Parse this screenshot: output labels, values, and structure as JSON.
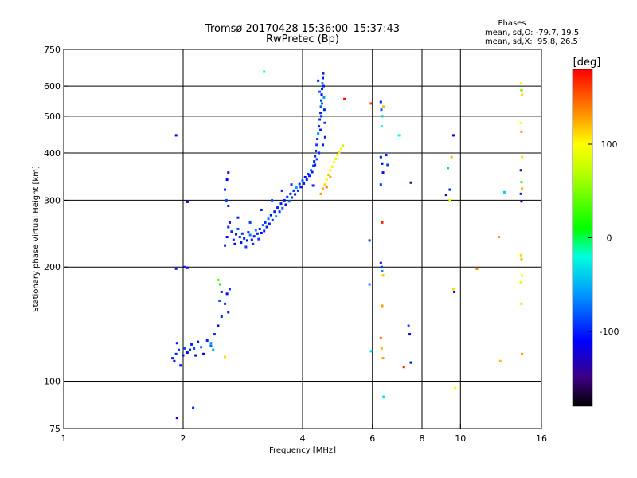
{
  "chart_data": {
    "type": "scatter",
    "title": "Tromsø 20170428 15:36:00–15:37:43",
    "subtitle": "RwPretec (Bp)",
    "xlabel": "Frequency [MHz]",
    "ylabel": "Stationary phase Virtual Height [km]",
    "xscale": "log2",
    "yscale": "log",
    "xlim": [
      1,
      16
    ],
    "ylim": [
      75,
      750
    ],
    "x_ticks": [
      {
        "value": 1,
        "label": "1"
      },
      {
        "value": 2,
        "label": "2"
      },
      {
        "value": 4,
        "label": "4"
      },
      {
        "value": 6,
        "label": "6"
      },
      {
        "value": 8,
        "label": "8"
      },
      {
        "value": 10,
        "label": "10"
      },
      {
        "value": 16,
        "label": "16"
      }
    ],
    "y_ticks": [
      {
        "value": 75,
        "label": "75"
      },
      {
        "value": 100,
        "label": "100"
      },
      {
        "value": 200,
        "label": "200"
      },
      {
        "value": 300,
        "label": "300"
      },
      {
        "value": 400,
        "label": "400"
      },
      {
        "value": 500,
        "label": "500"
      },
      {
        "value": 600,
        "label": "600"
      },
      {
        "value": 750,
        "label": "750"
      }
    ],
    "x_grid": [
      2,
      4,
      6,
      8,
      10
    ],
    "y_grid": [
      100,
      200,
      300,
      400,
      500,
      600
    ],
    "grid": true,
    "phase_info": {
      "heading": "Phases",
      "line_o": "mean, sd,O: -79.7, 19.5",
      "line_x": "mean, sd,X:  95.8, 26.5"
    },
    "colorbar": {
      "label": "[deg]",
      "range": [
        -180,
        180
      ],
      "ticks": [
        {
          "value": 100,
          "label": "100"
        },
        {
          "value": 0,
          "label": "0"
        },
        {
          "value": -100,
          "label": "-100"
        }
      ],
      "stops": [
        {
          "value": -180,
          "color": "#000000"
        },
        {
          "value": -150,
          "color": "#3d0080"
        },
        {
          "value": -110,
          "color": "#0000ff"
        },
        {
          "value": -60,
          "color": "#0099ff"
        },
        {
          "value": -20,
          "color": "#00ffdd"
        },
        {
          "value": 10,
          "color": "#00ff00"
        },
        {
          "value": 70,
          "color": "#bbff00"
        },
        {
          "value": 100,
          "color": "#ffff00"
        },
        {
          "value": 130,
          "color": "#ff9900"
        },
        {
          "value": 180,
          "color": "#ff0000"
        }
      ]
    },
    "points": [
      {
        "f": 1.88,
        "h": 115,
        "p": -100
      },
      {
        "f": 1.9,
        "h": 113,
        "p": -110
      },
      {
        "f": 1.92,
        "h": 118,
        "p": -95
      },
      {
        "f": 1.93,
        "h": 126,
        "p": -105
      },
      {
        "f": 1.95,
        "h": 121,
        "p": -90
      },
      {
        "f": 1.97,
        "h": 110,
        "p": -115
      },
      {
        "f": 2.0,
        "h": 117,
        "p": -100
      },
      {
        "f": 2.02,
        "h": 122,
        "p": -85
      },
      {
        "f": 2.05,
        "h": 119,
        "p": -110
      },
      {
        "f": 2.08,
        "h": 121,
        "p": -95
      },
      {
        "f": 2.1,
        "h": 125,
        "p": -100
      },
      {
        "f": 2.13,
        "h": 122,
        "p": -90
      },
      {
        "f": 2.15,
        "h": 117,
        "p": -120
      },
      {
        "f": 2.18,
        "h": 127,
        "p": -105
      },
      {
        "f": 2.22,
        "h": 123,
        "p": -70
      },
      {
        "f": 2.25,
        "h": 118,
        "p": -110
      },
      {
        "f": 2.3,
        "h": 128,
        "p": -100
      },
      {
        "f": 2.35,
        "h": 124,
        "p": -80
      },
      {
        "f": 2.4,
        "h": 133,
        "p": -95
      },
      {
        "f": 2.45,
        "h": 140,
        "p": -105
      },
      {
        "f": 2.5,
        "h": 148,
        "p": -100
      },
      {
        "f": 2.55,
        "h": 160,
        "p": -90
      },
      {
        "f": 2.58,
        "h": 170,
        "p": -110
      },
      {
        "f": 2.6,
        "h": 152,
        "p": -100
      },
      {
        "f": 2.62,
        "h": 175,
        "p": -95
      },
      {
        "f": 2.5,
        "h": 172,
        "p": -100
      },
      {
        "f": 2.47,
        "h": 163,
        "p": -80
      },
      {
        "f": 2.45,
        "h": 185,
        "p": 40
      },
      {
        "f": 2.48,
        "h": 180,
        "p": 10
      },
      {
        "f": 2.35,
        "h": 126,
        "p": -60
      },
      {
        "f": 2.38,
        "h": 121,
        "p": -50
      },
      {
        "f": 2.55,
        "h": 116,
        "p": 110
      },
      {
        "f": 1.92,
        "h": 198,
        "p": -100
      },
      {
        "f": 2.02,
        "h": 200,
        "p": -95
      },
      {
        "f": 2.05,
        "h": 199,
        "p": -110
      },
      {
        "f": 1.92,
        "h": 445,
        "p": -110
      },
      {
        "f": 2.05,
        "h": 297,
        "p": -105
      },
      {
        "f": 1.93,
        "h": 80,
        "p": -110
      },
      {
        "f": 2.12,
        "h": 85,
        "p": -100
      },
      {
        "f": 2.55,
        "h": 320,
        "p": -100
      },
      {
        "f": 2.58,
        "h": 340,
        "p": -110
      },
      {
        "f": 2.6,
        "h": 355,
        "p": -105
      },
      {
        "f": 2.57,
        "h": 300,
        "p": -90
      },
      {
        "f": 2.6,
        "h": 290,
        "p": -100
      },
      {
        "f": 2.55,
        "h": 228,
        "p": -100
      },
      {
        "f": 2.58,
        "h": 240,
        "p": -110
      },
      {
        "f": 2.6,
        "h": 255,
        "p": -95
      },
      {
        "f": 2.62,
        "h": 262,
        "p": -105
      },
      {
        "f": 2.65,
        "h": 248,
        "p": -100
      },
      {
        "f": 2.68,
        "h": 236,
        "p": -90
      },
      {
        "f": 2.7,
        "h": 230,
        "p": -110
      },
      {
        "f": 2.72,
        "h": 244,
        "p": -100
      },
      {
        "f": 2.75,
        "h": 252,
        "p": -85
      },
      {
        "f": 2.78,
        "h": 240,
        "p": -100
      },
      {
        "f": 2.8,
        "h": 232,
        "p": -105
      },
      {
        "f": 2.82,
        "h": 245,
        "p": -95
      },
      {
        "f": 2.85,
        "h": 238,
        "p": -100
      },
      {
        "f": 2.88,
        "h": 226,
        "p": -90
      },
      {
        "f": 2.9,
        "h": 235,
        "p": -110
      },
      {
        "f": 2.92,
        "h": 247,
        "p": -100
      },
      {
        "f": 2.95,
        "h": 243,
        "p": -70
      },
      {
        "f": 2.98,
        "h": 236,
        "p": -100
      },
      {
        "f": 3.0,
        "h": 230,
        "p": -95
      },
      {
        "f": 3.02,
        "h": 241,
        "p": -105
      },
      {
        "f": 3.05,
        "h": 250,
        "p": -60
      },
      {
        "f": 3.08,
        "h": 245,
        "p": -100
      },
      {
        "f": 3.1,
        "h": 237,
        "p": -90
      },
      {
        "f": 3.12,
        "h": 252,
        "p": -100
      },
      {
        "f": 3.15,
        "h": 246,
        "p": -110
      },
      {
        "f": 3.18,
        "h": 258,
        "p": -80
      },
      {
        "f": 3.2,
        "h": 249,
        "p": -100
      },
      {
        "f": 3.22,
        "h": 262,
        "p": -95
      },
      {
        "f": 3.25,
        "h": 255,
        "p": -100
      },
      {
        "f": 3.28,
        "h": 268,
        "p": -70
      },
      {
        "f": 3.3,
        "h": 260,
        "p": -100
      },
      {
        "f": 3.33,
        "h": 274,
        "p": -105
      },
      {
        "f": 3.36,
        "h": 266,
        "p": -90
      },
      {
        "f": 3.4,
        "h": 280,
        "p": -100
      },
      {
        "f": 3.43,
        "h": 272,
        "p": -60
      },
      {
        "f": 3.46,
        "h": 287,
        "p": -100
      },
      {
        "f": 3.5,
        "h": 280,
        "p": -95
      },
      {
        "f": 3.53,
        "h": 294,
        "p": -100
      },
      {
        "f": 3.56,
        "h": 286,
        "p": -80
      },
      {
        "f": 3.6,
        "h": 300,
        "p": -100
      },
      {
        "f": 3.63,
        "h": 292,
        "p": -110
      },
      {
        "f": 3.66,
        "h": 306,
        "p": -95
      },
      {
        "f": 3.7,
        "h": 298,
        "p": -70
      },
      {
        "f": 3.73,
        "h": 312,
        "p": -100
      },
      {
        "f": 3.76,
        "h": 305,
        "p": -90
      },
      {
        "f": 3.8,
        "h": 318,
        "p": -100
      },
      {
        "f": 3.83,
        "h": 311,
        "p": -105
      },
      {
        "f": 3.86,
        "h": 324,
        "p": -60
      },
      {
        "f": 3.9,
        "h": 318,
        "p": -100
      },
      {
        "f": 3.93,
        "h": 331,
        "p": -95
      },
      {
        "f": 3.96,
        "h": 325,
        "p": -100
      },
      {
        "f": 4.0,
        "h": 338,
        "p": -80
      },
      {
        "f": 4.03,
        "h": 332,
        "p": -100
      },
      {
        "f": 4.06,
        "h": 345,
        "p": -110
      },
      {
        "f": 4.1,
        "h": 340,
        "p": -100
      },
      {
        "f": 4.13,
        "h": 352,
        "p": -90
      },
      {
        "f": 4.16,
        "h": 348,
        "p": -100
      },
      {
        "f": 4.2,
        "h": 360,
        "p": -70
      },
      {
        "f": 4.23,
        "h": 356,
        "p": -100
      },
      {
        "f": 4.26,
        "h": 370,
        "p": -95
      },
      {
        "f": 4.28,
        "h": 380,
        "p": -100
      },
      {
        "f": 4.3,
        "h": 392,
        "p": -105
      },
      {
        "f": 4.32,
        "h": 405,
        "p": -100
      },
      {
        "f": 4.34,
        "h": 420,
        "p": -90
      },
      {
        "f": 4.36,
        "h": 435,
        "p": -100
      },
      {
        "f": 4.38,
        "h": 450,
        "p": -60
      },
      {
        "f": 4.4,
        "h": 470,
        "p": -100
      },
      {
        "f": 4.42,
        "h": 490,
        "p": -95
      },
      {
        "f": 4.44,
        "h": 510,
        "p": -100
      },
      {
        "f": 4.45,
        "h": 530,
        "p": -80
      },
      {
        "f": 4.46,
        "h": 550,
        "p": -100
      },
      {
        "f": 4.47,
        "h": 570,
        "p": -110
      },
      {
        "f": 4.48,
        "h": 590,
        "p": -100
      },
      {
        "f": 4.49,
        "h": 610,
        "p": -70
      },
      {
        "f": 4.5,
        "h": 630,
        "p": -100
      },
      {
        "f": 4.51,
        "h": 648,
        "p": -95
      },
      {
        "f": 4.52,
        "h": 600,
        "p": -100
      },
      {
        "f": 4.53,
        "h": 560,
        "p": -60
      },
      {
        "f": 4.54,
        "h": 520,
        "p": -100
      },
      {
        "f": 4.55,
        "h": 480,
        "p": -90
      },
      {
        "f": 4.56,
        "h": 440,
        "p": -100
      },
      {
        "f": 4.38,
        "h": 620,
        "p": -100
      },
      {
        "f": 4.42,
        "h": 580,
        "p": -80
      },
      {
        "f": 4.46,
        "h": 500,
        "p": -100
      },
      {
        "f": 4.4,
        "h": 400,
        "p": -95
      },
      {
        "f": 4.44,
        "h": 460,
        "p": -100
      },
      {
        "f": 4.48,
        "h": 540,
        "p": -70
      },
      {
        "f": 4.3,
        "h": 372,
        "p": -100
      },
      {
        "f": 4.35,
        "h": 385,
        "p": -90
      },
      {
        "f": 4.5,
        "h": 420,
        "p": -100
      },
      {
        "f": 2.75,
        "h": 270,
        "p": -100
      },
      {
        "f": 2.95,
        "h": 262,
        "p": -90
      },
      {
        "f": 3.15,
        "h": 283,
        "p": -100
      },
      {
        "f": 3.35,
        "h": 300,
        "p": -80
      },
      {
        "f": 3.55,
        "h": 318,
        "p": -100
      },
      {
        "f": 3.75,
        "h": 330,
        "p": -95
      },
      {
        "f": 4.25,
        "h": 328,
        "p": -100
      },
      {
        "f": 4.5,
        "h": 322,
        "p": 120
      },
      {
        "f": 4.55,
        "h": 330,
        "p": 110
      },
      {
        "f": 4.6,
        "h": 340,
        "p": 100
      },
      {
        "f": 4.65,
        "h": 350,
        "p": 115
      },
      {
        "f": 4.7,
        "h": 360,
        "p": 90
      },
      {
        "f": 4.75,
        "h": 368,
        "p": 105
      },
      {
        "f": 4.8,
        "h": 378,
        "p": 100
      },
      {
        "f": 4.85,
        "h": 386,
        "p": 80
      },
      {
        "f": 4.9,
        "h": 395,
        "p": 100
      },
      {
        "f": 4.95,
        "h": 402,
        "p": 110
      },
      {
        "f": 5.0,
        "h": 410,
        "p": 95
      },
      {
        "f": 5.05,
        "h": 418,
        "p": 70
      },
      {
        "f": 4.45,
        "h": 312,
        "p": 130
      },
      {
        "f": 4.6,
        "h": 325,
        "p": 140
      },
      {
        "f": 4.7,
        "h": 345,
        "p": 125
      },
      {
        "f": 5.1,
        "h": 555,
        "p": 175
      },
      {
        "f": 3.2,
        "h": 655,
        "p": -20
      },
      {
        "f": 6.3,
        "h": 545,
        "p": -100
      },
      {
        "f": 6.32,
        "h": 520,
        "p": -80
      },
      {
        "f": 6.35,
        "h": 500,
        "p": -40
      },
      {
        "f": 6.33,
        "h": 470,
        "p": -20
      },
      {
        "f": 6.3,
        "h": 390,
        "p": -100
      },
      {
        "f": 6.35,
        "h": 375,
        "p": -110
      },
      {
        "f": 6.38,
        "h": 355,
        "p": -105
      },
      {
        "f": 6.3,
        "h": 330,
        "p": -90
      },
      {
        "f": 6.35,
        "h": 262,
        "p": 170
      },
      {
        "f": 6.3,
        "h": 205,
        "p": -100
      },
      {
        "f": 6.33,
        "h": 200,
        "p": -95
      },
      {
        "f": 6.35,
        "h": 195,
        "p": -60
      },
      {
        "f": 6.38,
        "h": 190,
        "p": 120
      },
      {
        "f": 6.35,
        "h": 158,
        "p": 130
      },
      {
        "f": 6.3,
        "h": 130,
        "p": 140
      },
      {
        "f": 6.33,
        "h": 122,
        "p": 120
      },
      {
        "f": 6.38,
        "h": 115,
        "p": 130
      },
      {
        "f": 6.4,
        "h": 91,
        "p": -30
      },
      {
        "f": 6.4,
        "h": 530,
        "p": 120
      },
      {
        "f": 5.95,
        "h": 540,
        "p": 160
      },
      {
        "f": 6.5,
        "h": 395,
        "p": -100
      },
      {
        "f": 6.55,
        "h": 372,
        "p": -90
      },
      {
        "f": 5.9,
        "h": 180,
        "p": -60
      },
      {
        "f": 5.9,
        "h": 235,
        "p": -90
      },
      {
        "f": 5.95,
        "h": 120,
        "p": -30
      },
      {
        "f": 7.0,
        "h": 445,
        "p": -20
      },
      {
        "f": 7.5,
        "h": 334,
        "p": -150
      },
      {
        "f": 7.4,
        "h": 140,
        "p": -80
      },
      {
        "f": 7.45,
        "h": 133,
        "p": -110
      },
      {
        "f": 7.5,
        "h": 112,
        "p": -110
      },
      {
        "f": 7.2,
        "h": 109,
        "p": 170
      },
      {
        "f": 9.6,
        "h": 445,
        "p": -110
      },
      {
        "f": 9.5,
        "h": 390,
        "p": 120
      },
      {
        "f": 9.3,
        "h": 365,
        "p": -40
      },
      {
        "f": 9.4,
        "h": 320,
        "p": -100
      },
      {
        "f": 9.2,
        "h": 310,
        "p": -140
      },
      {
        "f": 9.4,
        "h": 300,
        "p": 90
      },
      {
        "f": 9.6,
        "h": 175,
        "p": 110
      },
      {
        "f": 9.65,
        "h": 172,
        "p": -110
      },
      {
        "f": 9.7,
        "h": 96,
        "p": 100
      },
      {
        "f": 11.0,
        "h": 198,
        "p": 140
      },
      {
        "f": 12.5,
        "h": 240,
        "p": 130
      },
      {
        "f": 12.6,
        "h": 113,
        "p": 120
      },
      {
        "f": 12.9,
        "h": 315,
        "p": -40
      },
      {
        "f": 14.2,
        "h": 610,
        "p": 90
      },
      {
        "f": 14.25,
        "h": 585,
        "p": 40
      },
      {
        "f": 14.3,
        "h": 570,
        "p": 110
      },
      {
        "f": 14.2,
        "h": 480,
        "p": 100
      },
      {
        "f": 14.25,
        "h": 455,
        "p": 130
      },
      {
        "f": 14.3,
        "h": 390,
        "p": 110
      },
      {
        "f": 14.2,
        "h": 360,
        "p": -130
      },
      {
        "f": 14.25,
        "h": 335,
        "p": 30
      },
      {
        "f": 14.3,
        "h": 322,
        "p": 120
      },
      {
        "f": 14.2,
        "h": 312,
        "p": -100
      },
      {
        "f": 14.25,
        "h": 298,
        "p": -140
      },
      {
        "f": 14.2,
        "h": 215,
        "p": 110
      },
      {
        "f": 14.25,
        "h": 210,
        "p": 120
      },
      {
        "f": 14.3,
        "h": 190,
        "p": 100
      },
      {
        "f": 14.2,
        "h": 182,
        "p": 90
      },
      {
        "f": 14.25,
        "h": 160,
        "p": 110
      },
      {
        "f": 14.3,
        "h": 118,
        "p": 130
      }
    ]
  }
}
